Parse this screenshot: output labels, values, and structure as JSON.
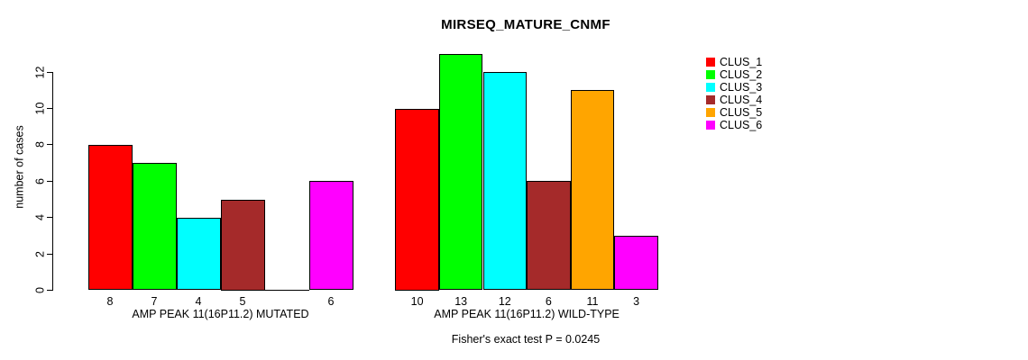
{
  "chart_data": {
    "type": "bar",
    "title": "MIRSEQ_MATURE_CNMF",
    "ylabel": "number of cases",
    "subtitle": "Fisher's exact test P = 0.0245",
    "ylim": [
      0,
      13
    ],
    "yticks": [
      0,
      2,
      4,
      6,
      8,
      10,
      12
    ],
    "grid": false,
    "legend_position": "right-outside",
    "legend": [
      "CLUS_1",
      "CLUS_2",
      "CLUS_3",
      "CLUS_4",
      "CLUS_5",
      "CLUS_6"
    ],
    "colors": [
      "#ff0000",
      "#00ff00",
      "#00ffff",
      "#a52a2a",
      "#ffa500",
      "#ff00ff"
    ],
    "groups": [
      {
        "key": "mutated",
        "label": "AMP PEAK 11(16P11.2) MUTATED",
        "values": [
          8,
          7,
          4,
          5,
          0,
          6
        ],
        "bar_labels": [
          "8",
          "7",
          "4",
          "5",
          "",
          "6"
        ]
      },
      {
        "key": "wild-type",
        "label": "AMP PEAK 11(16P11.2) WILD-TYPE",
        "values": [
          10,
          13,
          12,
          6,
          11,
          3
        ],
        "bar_labels": [
          "10",
          "13",
          "12",
          "6",
          "11",
          "3"
        ]
      }
    ]
  }
}
